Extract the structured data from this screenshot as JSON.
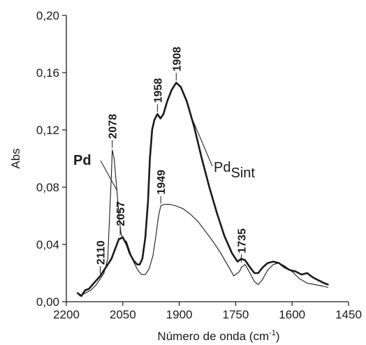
{
  "chart_data": {
    "type": "line",
    "title": "",
    "xlabel": "Número de onda (cm",
    "xlabel_sup": "-1",
    "xlabel_close": ")",
    "ylabel": "Abs",
    "xlim": [
      2200,
      1450
    ],
    "ylim": [
      0,
      0.2
    ],
    "x_reversed": true,
    "grid": false,
    "x_ticks": [
      2200,
      2050,
      1900,
      1750,
      1600,
      1450
    ],
    "x_tick_labels": [
      "2200",
      "2050",
      "1900",
      "1750",
      "1600",
      "1450"
    ],
    "y_ticks": [
      0.0,
      0.04,
      0.08,
      0.12,
      0.16,
      0.2
    ],
    "y_tick_labels": [
      "0,00",
      "0,04",
      "0,08",
      "0,12",
      "0,16",
      "0,20"
    ],
    "series": [
      {
        "name": "Pd",
        "name_style": "bold",
        "color": "#1a1a1a",
        "stroke": "thin",
        "points": [
          [
            2165,
            0.004
          ],
          [
            2150,
            0.006
          ],
          [
            2135,
            0.008
          ],
          [
            2120,
            0.012
          ],
          [
            2110,
            0.016
          ],
          [
            2100,
            0.02
          ],
          [
            2090,
            0.03
          ],
          [
            2085,
            0.06
          ],
          [
            2080,
            0.09
          ],
          [
            2078,
            0.106
          ],
          [
            2073,
            0.1
          ],
          [
            2067,
            0.082
          ],
          [
            2060,
            0.06
          ],
          [
            2055,
            0.048
          ],
          [
            2050,
            0.044
          ],
          [
            2040,
            0.042
          ],
          [
            2030,
            0.034
          ],
          [
            2020,
            0.027
          ],
          [
            2010,
            0.022
          ],
          [
            2000,
            0.019
          ],
          [
            1990,
            0.019
          ],
          [
            1980,
            0.023
          ],
          [
            1970,
            0.032
          ],
          [
            1962,
            0.046
          ],
          [
            1955,
            0.06
          ],
          [
            1949,
            0.067
          ],
          [
            1940,
            0.068
          ],
          [
            1925,
            0.068
          ],
          [
            1910,
            0.067
          ],
          [
            1890,
            0.065
          ],
          [
            1870,
            0.061
          ],
          [
            1850,
            0.056
          ],
          [
            1830,
            0.049
          ],
          [
            1810,
            0.042
          ],
          [
            1790,
            0.034
          ],
          [
            1770,
            0.025
          ],
          [
            1755,
            0.018
          ],
          [
            1740,
            0.021
          ],
          [
            1735,
            0.024
          ],
          [
            1725,
            0.026
          ],
          [
            1712,
            0.02
          ],
          [
            1700,
            0.014
          ],
          [
            1690,
            0.012
          ],
          [
            1680,
            0.015
          ],
          [
            1665,
            0.022
          ],
          [
            1650,
            0.026
          ],
          [
            1635,
            0.027
          ],
          [
            1620,
            0.025
          ],
          [
            1600,
            0.021
          ],
          [
            1580,
            0.016
          ],
          [
            1560,
            0.013
          ],
          [
            1540,
            0.012
          ],
          [
            1520,
            0.011
          ],
          [
            1505,
            0.01
          ]
        ]
      },
      {
        "name": "Pd",
        "name_sub": "Sint",
        "color": "#1a1a1a",
        "stroke": "bold",
        "points": [
          [
            2170,
            0.006
          ],
          [
            2160,
            0.004
          ],
          [
            2150,
            0.008
          ],
          [
            2140,
            0.009
          ],
          [
            2130,
            0.012
          ],
          [
            2120,
            0.015
          ],
          [
            2110,
            0.018
          ],
          [
            2100,
            0.022
          ],
          [
            2090,
            0.026
          ],
          [
            2080,
            0.03
          ],
          [
            2070,
            0.037
          ],
          [
            2060,
            0.044
          ],
          [
            2057,
            0.044
          ],
          [
            2050,
            0.045
          ],
          [
            2040,
            0.04
          ],
          [
            2032,
            0.034
          ],
          [
            2022,
            0.029
          ],
          [
            2012,
            0.026
          ],
          [
            2005,
            0.026
          ],
          [
            1998,
            0.03
          ],
          [
            1990,
            0.045
          ],
          [
            1983,
            0.07
          ],
          [
            1978,
            0.1
          ],
          [
            1972,
            0.12
          ],
          [
            1966,
            0.127
          ],
          [
            1958,
            0.131
          ],
          [
            1950,
            0.128
          ],
          [
            1942,
            0.131
          ],
          [
            1932,
            0.14
          ],
          [
            1920,
            0.148
          ],
          [
            1908,
            0.153
          ],
          [
            1896,
            0.15
          ],
          [
            1880,
            0.14
          ],
          [
            1860,
            0.122
          ],
          [
            1840,
            0.1
          ],
          [
            1820,
            0.08
          ],
          [
            1800,
            0.062
          ],
          [
            1780,
            0.046
          ],
          [
            1760,
            0.034
          ],
          [
            1745,
            0.028
          ],
          [
            1735,
            0.03
          ],
          [
            1725,
            0.029
          ],
          [
            1712,
            0.024
          ],
          [
            1700,
            0.02
          ],
          [
            1690,
            0.02
          ],
          [
            1678,
            0.024
          ],
          [
            1665,
            0.027
          ],
          [
            1650,
            0.028
          ],
          [
            1635,
            0.027
          ],
          [
            1620,
            0.024
          ],
          [
            1605,
            0.022
          ],
          [
            1590,
            0.021
          ],
          [
            1575,
            0.019
          ],
          [
            1560,
            0.02
          ],
          [
            1545,
            0.017
          ],
          [
            1530,
            0.015
          ],
          [
            1515,
            0.013
          ],
          [
            1505,
            0.012
          ]
        ]
      }
    ],
    "annotations": [
      {
        "text": "2110",
        "x": 2110,
        "y": 0.018,
        "rotated": true
      },
      {
        "text": "2078",
        "x": 2078,
        "y": 0.106,
        "rotated": true
      },
      {
        "text": "2057",
        "x": 2057,
        "y": 0.045,
        "rotated": true
      },
      {
        "text": "1958",
        "x": 1958,
        "y": 0.131,
        "rotated": true
      },
      {
        "text": "1908",
        "x": 1908,
        "y": 0.153,
        "rotated": true
      },
      {
        "text": "1949",
        "x": 1949,
        "y": 0.067,
        "rotated": true
      },
      {
        "text": "1735",
        "x": 1735,
        "y": 0.026,
        "rotated": true
      }
    ]
  }
}
